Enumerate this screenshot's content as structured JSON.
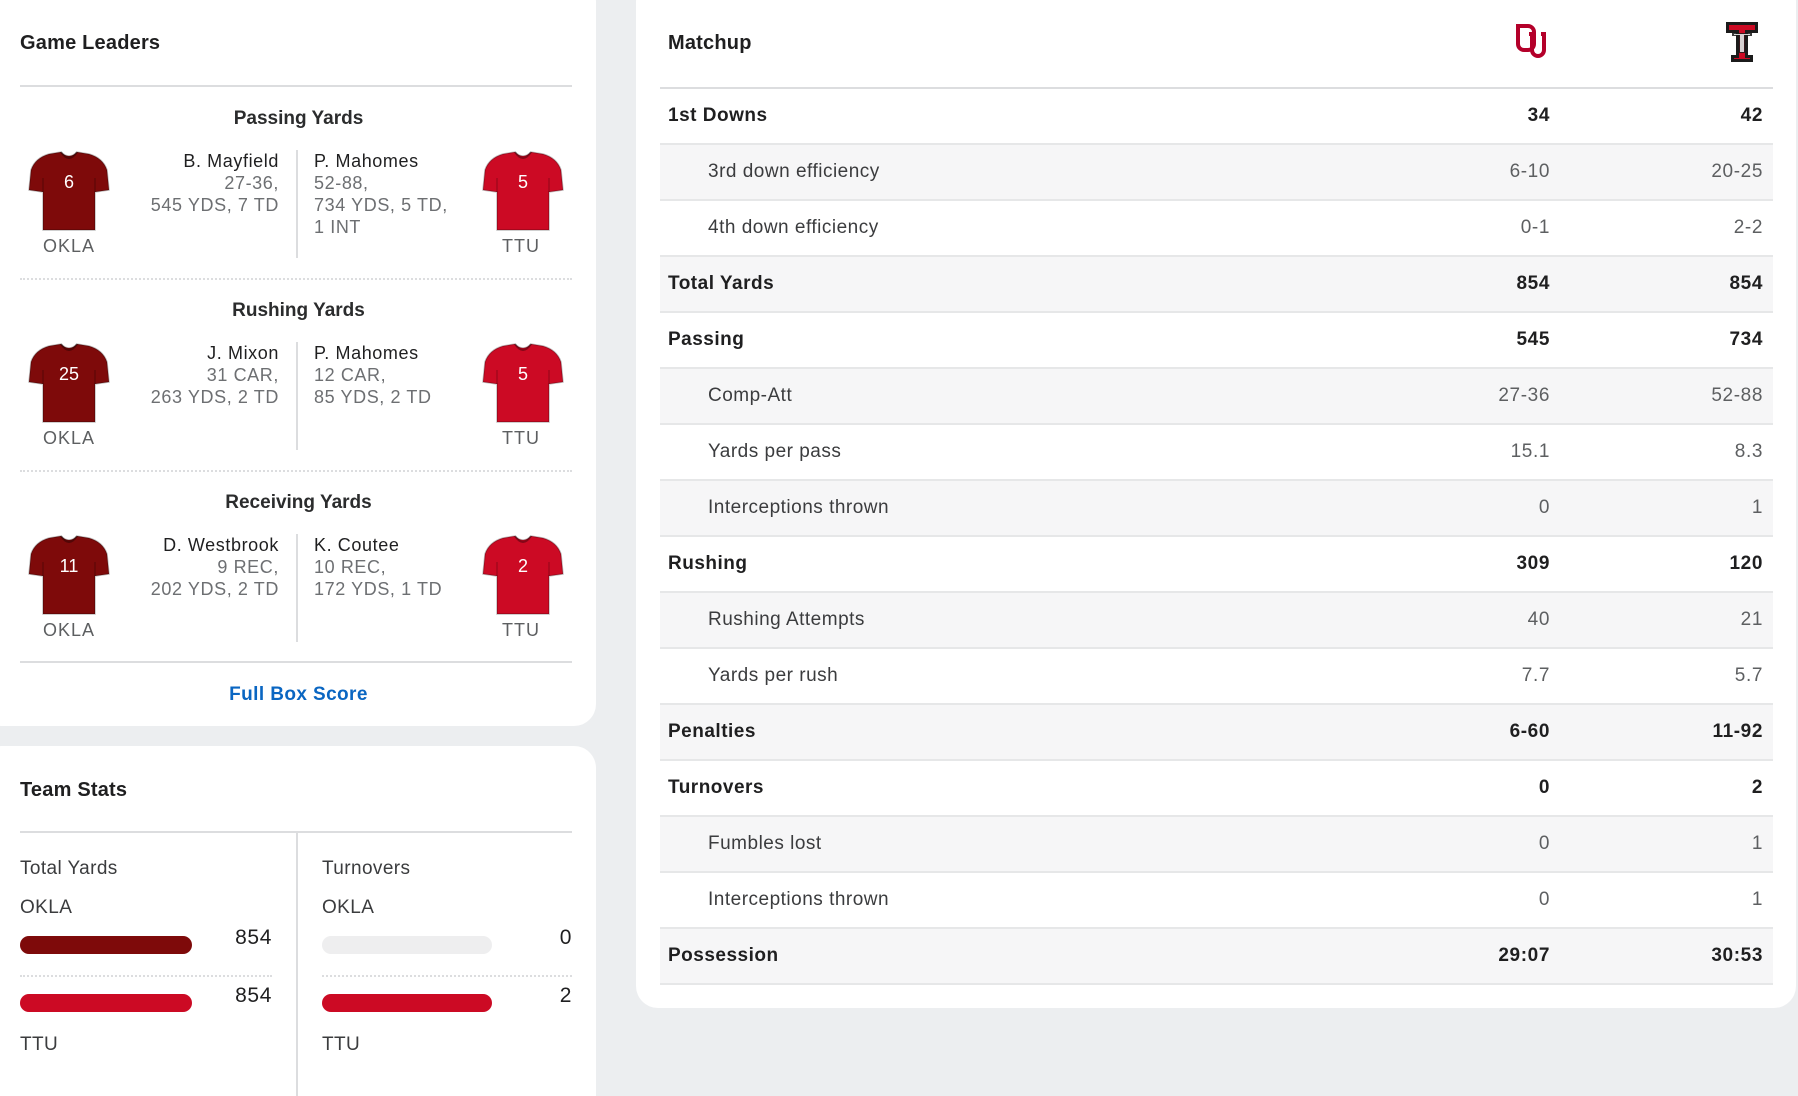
{
  "game_leaders": {
    "title": "Game Leaders",
    "categories": [
      {
        "title": "Passing Yards",
        "home": {
          "name": "B. Mayfield",
          "line1": "27-36,",
          "line2": "545 YDS, 7 TD",
          "line3": "",
          "number": "6",
          "team": "OKLA"
        },
        "away": {
          "name": "P. Mahomes",
          "line1": "52-88,",
          "line2": "734 YDS, 5 TD,",
          "line3": "1 INT",
          "number": "5",
          "team": "TTU"
        }
      },
      {
        "title": "Rushing Yards",
        "home": {
          "name": "J. Mixon",
          "line1": "31 CAR,",
          "line2": "263 YDS, 2 TD",
          "line3": "",
          "number": "25",
          "team": "OKLA"
        },
        "away": {
          "name": "P. Mahomes",
          "line1": "12 CAR,",
          "line2": "85 YDS, 2 TD",
          "line3": "",
          "number": "5",
          "team": "TTU"
        }
      },
      {
        "title": "Receiving Yards",
        "home": {
          "name": "D. Westbrook",
          "line1": "9 REC,",
          "line2": "202 YDS, 2 TD",
          "line3": "",
          "number": "11",
          "team": "OKLA"
        },
        "away": {
          "name": "K. Coutee",
          "line1": "10 REC,",
          "line2": "172 YDS, 1 TD",
          "line3": "",
          "number": "2",
          "team": "TTU"
        }
      }
    ],
    "link": "Full Box Score"
  },
  "team_stats": {
    "title": "Team Stats",
    "total_yards": {
      "label": "Total Yards",
      "home_team": "OKLA",
      "away_team": "TTU",
      "home": "854",
      "away": "854",
      "home_frac": 1.0,
      "away_frac": 1.0
    },
    "turnovers": {
      "label": "Turnovers",
      "home_team": "OKLA",
      "away_team": "TTU",
      "home": "0",
      "away": "2",
      "home_frac": 0.0,
      "away_frac": 1.0
    }
  },
  "matchup": {
    "title": "Matchup",
    "home_logo": "oklahoma-ou-logo",
    "away_logo": "texas-tech-logo",
    "rows": [
      {
        "label": "1st Downs",
        "home": "34",
        "away": "42",
        "type": "main"
      },
      {
        "label": "3rd down efficiency",
        "home": "6-10",
        "away": "20-25",
        "type": "sub"
      },
      {
        "label": "4th down efficiency",
        "home": "0-1",
        "away": "2-2",
        "type": "sub"
      },
      {
        "label": "Total Yards",
        "home": "854",
        "away": "854",
        "type": "main"
      },
      {
        "label": "Passing",
        "home": "545",
        "away": "734",
        "type": "main"
      },
      {
        "label": "Comp-Att",
        "home": "27-36",
        "away": "52-88",
        "type": "sub"
      },
      {
        "label": "Yards per pass",
        "home": "15.1",
        "away": "8.3",
        "type": "sub"
      },
      {
        "label": "Interceptions thrown",
        "home": "0",
        "away": "1",
        "type": "sub"
      },
      {
        "label": "Rushing",
        "home": "309",
        "away": "120",
        "type": "main"
      },
      {
        "label": "Rushing Attempts",
        "home": "40",
        "away": "21",
        "type": "sub"
      },
      {
        "label": "Yards per rush",
        "home": "7.7",
        "away": "5.7",
        "type": "sub"
      },
      {
        "label": "Penalties",
        "home": "6-60",
        "away": "11-92",
        "type": "main"
      },
      {
        "label": "Turnovers",
        "home": "0",
        "away": "2",
        "type": "main"
      },
      {
        "label": "Fumbles lost",
        "home": "0",
        "away": "1",
        "type": "sub"
      },
      {
        "label": "Interceptions thrown",
        "home": "0",
        "away": "1",
        "type": "sub"
      },
      {
        "label": "Possession",
        "home": "29:07",
        "away": "30:53",
        "type": "main"
      }
    ]
  },
  "colors": {
    "okla": "#7e0a0a",
    "ttu": "#cc0a24",
    "link": "#0a66c2"
  }
}
